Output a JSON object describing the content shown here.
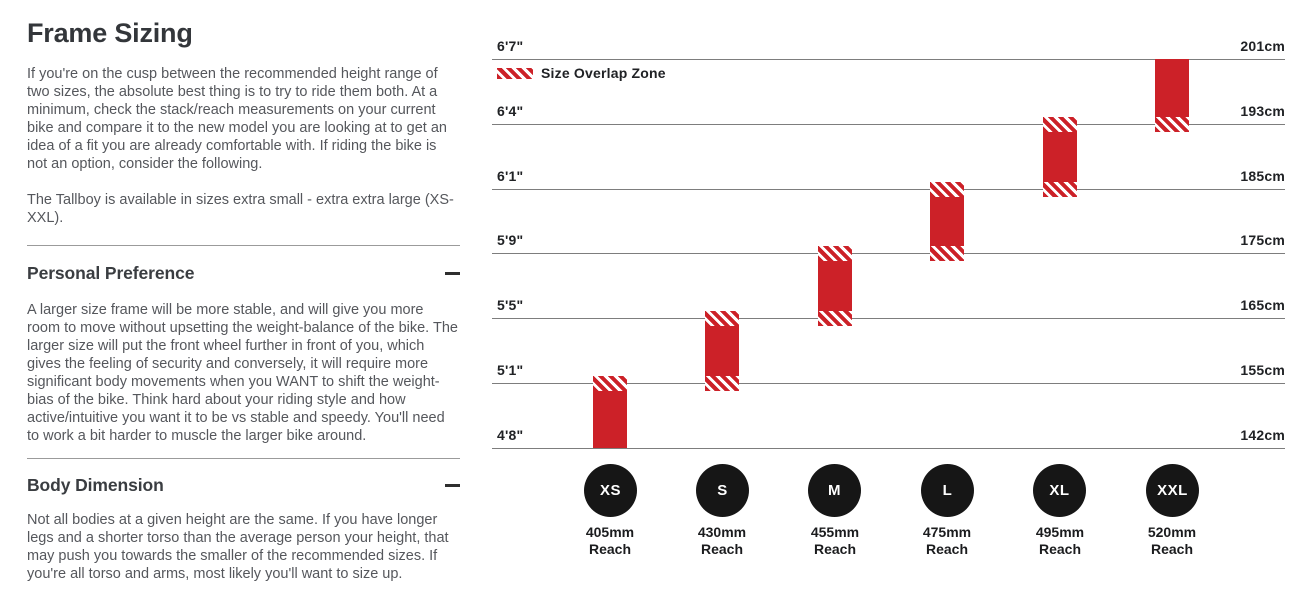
{
  "page": {
    "title": "Frame Sizing",
    "intro_p1": "If you're on the cusp between the recommended height range of two sizes, the absolute best thing is to try to ride them both. At a minimum, check the stack/reach measurements on your current bike and compare it to the new model you are looking at to get an idea of a fit you are already comfortable with. If riding the bike is not an option, consider the following.",
    "intro_p2": "The Tallboy is available in sizes extra small - extra extra large (XS-XXL).",
    "sections": [
      {
        "heading": "Personal Preference",
        "toggle_state": "expanded",
        "body": "A larger size frame will be more stable, and will give you more room to move without upsetting the weight-balance of the bike. The larger size will put the front wheel further in front of you, which gives the feeling of security and conversely, it will require more significant body movements when you WANT to shift the weight-bias of the bike. Think hard about your riding style and how active/intuitive you want it to be vs stable and speedy. You'll need to work a bit harder to muscle the larger bike around."
      },
      {
        "heading": "Body Dimension",
        "toggle_state": "expanded",
        "body": "Not all bodies at a given height are the same. If you have longer legs and a shorter torso than the average person your height, that may push you towards the smaller of the recommended sizes. If you're all torso and arms, most likely you'll want to size up."
      }
    ]
  },
  "chart_data": {
    "type": "bar",
    "title": "Frame size vs rider height",
    "orientation": "vertical-range-bars",
    "legend_label": "Size Overlap Zone",
    "legend_swatch": "red-diagonal-hatch",
    "axis": {
      "left_tick_labels": [
        "6'7\"",
        "6'4\"",
        "6'1\"",
        "5'9\"",
        "5'5\"",
        "5'1\"",
        "4'8\""
      ],
      "right_tick_labels": [
        "201cm",
        "193cm",
        "185cm",
        "175cm",
        "165cm",
        "155cm",
        "142cm"
      ],
      "grid": true
    },
    "sizes": [
      {
        "label": "XS",
        "reach": "405mm",
        "reach_caption": "Reach",
        "height_range_ft": "4'8\"-5'1\"",
        "height_range_cm": "142-155cm",
        "top_line": 5,
        "bottom_line": 6,
        "overlap_top": true,
        "overlap_bottom": false
      },
      {
        "label": "S",
        "reach": "430mm",
        "reach_caption": "Reach",
        "height_range_ft": "5'1\"-5'5\"",
        "height_range_cm": "155-165cm",
        "top_line": 4,
        "bottom_line": 5,
        "overlap_top": true,
        "overlap_bottom": true
      },
      {
        "label": "M",
        "reach": "455mm",
        "reach_caption": "Reach",
        "height_range_ft": "5'5\"-5'9\"",
        "height_range_cm": "165-175cm",
        "top_line": 3,
        "bottom_line": 4,
        "overlap_top": true,
        "overlap_bottom": true
      },
      {
        "label": "L",
        "reach": "475mm",
        "reach_caption": "Reach",
        "height_range_ft": "5'9\"-6'1\"",
        "height_range_cm": "175-185cm",
        "top_line": 2,
        "bottom_line": 3,
        "overlap_top": true,
        "overlap_bottom": true
      },
      {
        "label": "XL",
        "reach": "495mm",
        "reach_caption": "Reach",
        "height_range_ft": "6'1\"-6'4\"",
        "height_range_cm": "185-193cm",
        "top_line": 1,
        "bottom_line": 2,
        "overlap_top": true,
        "overlap_bottom": true
      },
      {
        "label": "XXL",
        "reach": "520mm",
        "reach_caption": "Reach",
        "height_range_ft": "6'4\"-6'7\"",
        "height_range_cm": "193-201cm",
        "top_line": 0,
        "bottom_line": 1,
        "overlap_top": false,
        "overlap_bottom": true
      }
    ],
    "colors": {
      "bar_red": "#cc2128",
      "gridline_gray": "#7d7d7d",
      "circle_black": "#161616"
    }
  }
}
